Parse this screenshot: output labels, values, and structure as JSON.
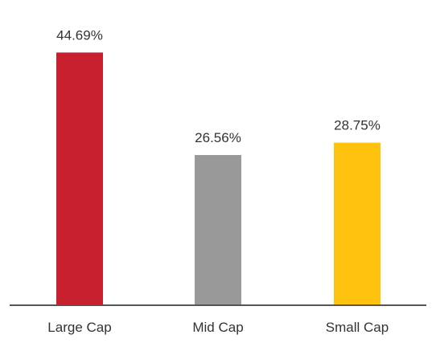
{
  "chart_data": {
    "type": "bar",
    "categories": [
      "Large Cap",
      "Mid Cap",
      "Small Cap"
    ],
    "values": [
      44.69,
      26.56,
      28.75
    ],
    "data_labels": [
      "44.69%",
      "26.56%",
      "28.75%"
    ],
    "colors": [
      "#C8202F",
      "#999999",
      "#FFC20E"
    ],
    "axis_color": "#555555",
    "title": "",
    "xlabel": "",
    "ylabel": "",
    "ylim": [
      0,
      50
    ],
    "grid": false,
    "legend": "none"
  }
}
